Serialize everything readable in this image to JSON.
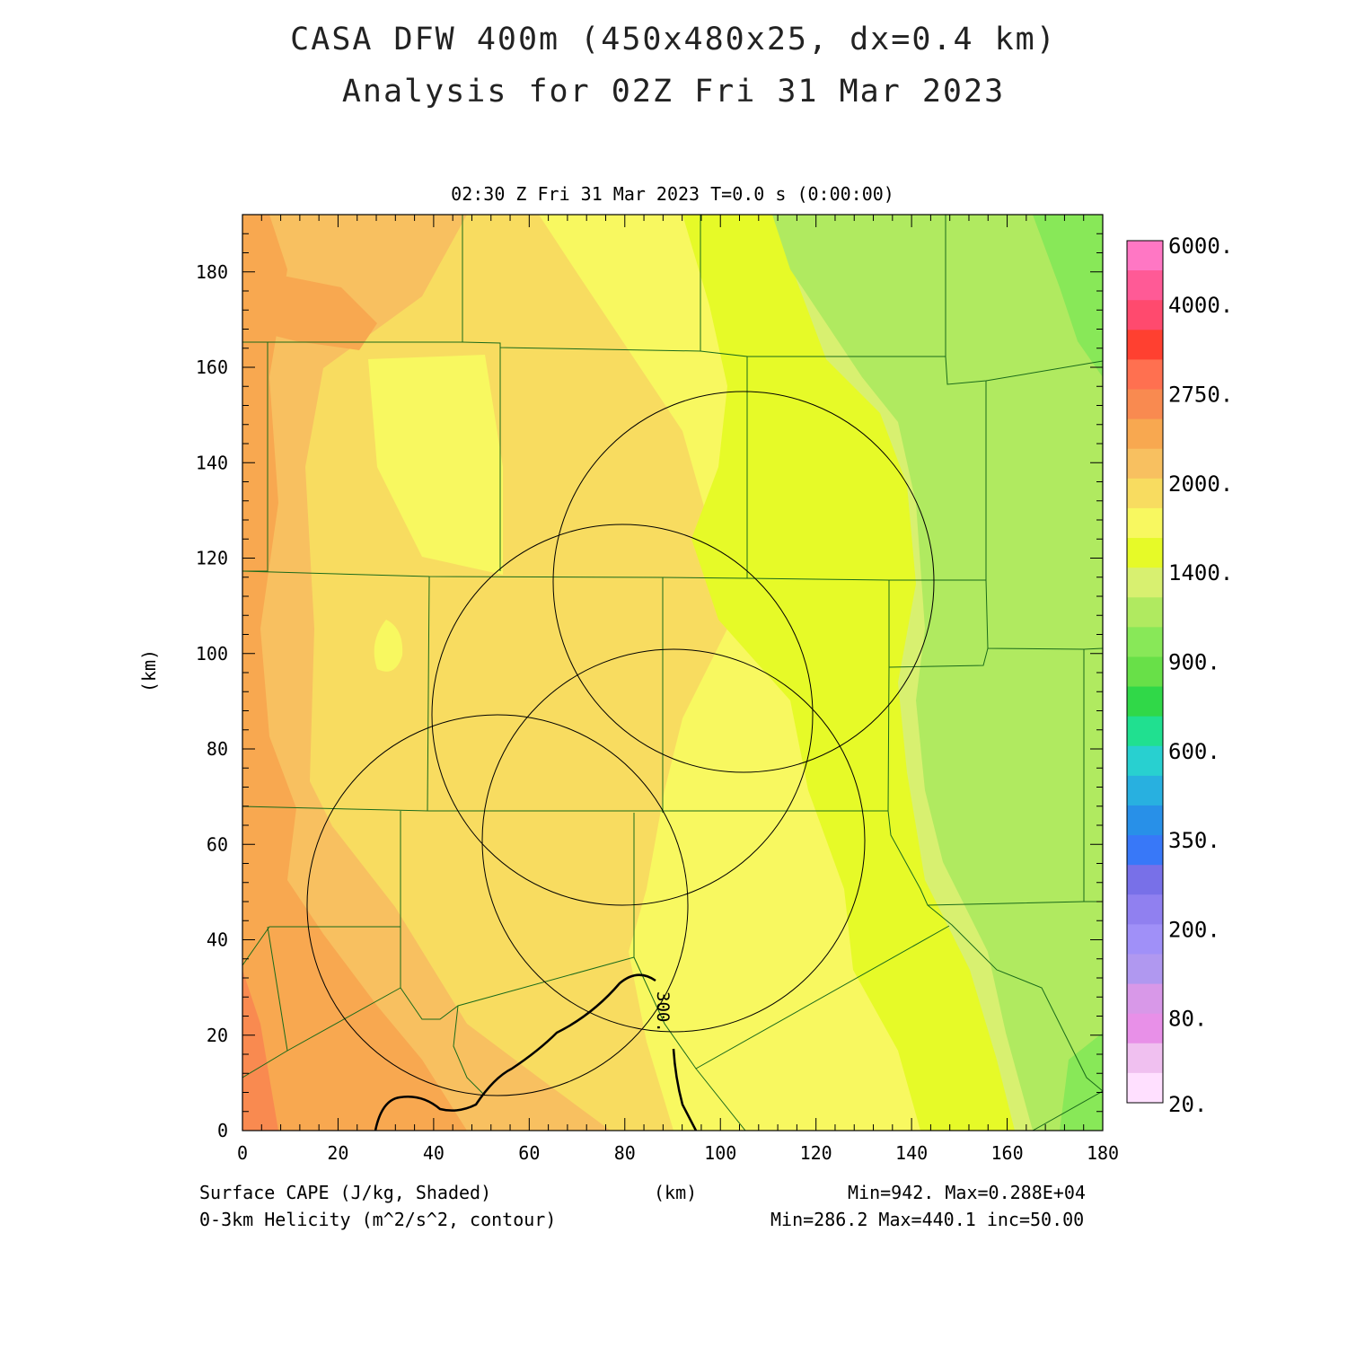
{
  "title": {
    "line1": "CASA DFW 400m (450x480x25, dx=0.4 km)",
    "line2": "Analysis for 02Z Fri 31 Mar 2023"
  },
  "time_info": "02:30 Z Fri 31 Mar 2023    T=0.0 s (0:00:00)",
  "axes": {
    "x_unit": "(km)",
    "y_unit": "(km)",
    "x_ticks": [
      "0",
      "20",
      "40",
      "60",
      "80",
      "100",
      "120",
      "140",
      "160",
      "180"
    ],
    "y_ticks": [
      "0",
      "20",
      "40",
      "60",
      "80",
      "100",
      "120",
      "140",
      "160",
      "180"
    ],
    "x_range": [
      0,
      180
    ],
    "y_range": [
      0,
      192
    ]
  },
  "field_labels": {
    "shaded": "Surface CAPE (J/kg, Shaded)",
    "contour": "0-3km Helicity (m^2/s^2, contour)"
  },
  "stats": {
    "shaded": "Min=942. Max=0.288E+04",
    "contour": "Min=286.2 Max=440.1 inc=50.00"
  },
  "contour_label": "300.",
  "colorbar": {
    "labels": [
      "6000.",
      "4000.",
      "2750.",
      "2000.",
      "1400.",
      "900.",
      "600.",
      "350.",
      "200.",
      "80.",
      "20."
    ],
    "colors_top_to_bottom": [
      "#ff77c4",
      "#ff5a96",
      "#ff4a6e",
      "#ff4030",
      "#ff7050",
      "#f98a50",
      "#f8a850",
      "#f8c060",
      "#f8dc60",
      "#f8f860",
      "#e6fa28",
      "#d8f070",
      "#b0ea60",
      "#88e858",
      "#68e048",
      "#30d848",
      "#20e090",
      "#28d0d0",
      "#28b0e0",
      "#2890e8",
      "#3878f8",
      "#7870e8",
      "#9080f0",
      "#a090f8",
      "#b098f0",
      "#d898e8",
      "#e890e8",
      "#f0c0f0",
      "#ffe0ff"
    ]
  },
  "fill_colors": {
    "cape_2750": "#f98a50",
    "cape_2400": "#f8a850",
    "cape_2200": "#f8c060",
    "cape_2000": "#f8dc60",
    "cape_1700": "#f8f860",
    "cape_1550": "#e6fa28",
    "cape_1400": "#d8f070",
    "cape_1150": "#b0ea60",
    "cape_1000": "#88e858",
    "county_line": "#1a6a1a"
  }
}
